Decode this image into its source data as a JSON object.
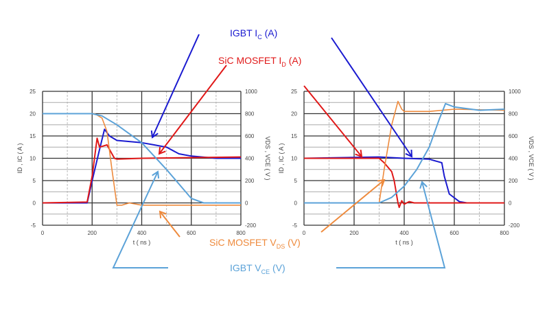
{
  "labels": {
    "igbt_ic": {
      "main": "IGBT I",
      "sub": "C",
      "unit": " (A)",
      "color": "#1a1ad0"
    },
    "sic_id": {
      "main": "SiC MOSFET I",
      "sub": "D",
      "unit": " (A)",
      "color": "#e01818"
    },
    "sic_vds": {
      "main": "SiC MOSFET V",
      "sub": "DS",
      "unit": " (V)",
      "color": "#ee8a3c"
    },
    "igbt_vce": {
      "main": "IGBT V",
      "sub": "CE",
      "unit": " (V)",
      "color": "#5ba2d8"
    }
  },
  "chart_data": [
    {
      "type": "line",
      "xlabel": "t ( ns )",
      "ylabel": "ID , IC ( A )",
      "y2label": "VDS , VCE ( V )",
      "xlim": [
        0,
        800
      ],
      "ylim": [
        -5,
        25
      ],
      "y2lim": [
        -200,
        1000
      ],
      "xticks": [
        0,
        200,
        400,
        600,
        800
      ],
      "yticks": [
        -5,
        0,
        5,
        10,
        15,
        20,
        25
      ],
      "y2ticks": [
        -200,
        0,
        200,
        400,
        600,
        800,
        1000
      ],
      "grid": true,
      "series": [
        {
          "name": "IGBT IC (A)",
          "axis": "left",
          "color": "#1a1ad0",
          "x": [
            0,
            180,
            200,
            230,
            250,
            270,
            300,
            400,
            450,
            500,
            550,
            600,
            700,
            800
          ],
          "y": [
            0,
            0,
            5,
            12,
            16.5,
            15,
            14,
            13.5,
            13,
            12.5,
            11,
            10.5,
            10,
            10
          ]
        },
        {
          "name": "SiC MOSFET ID (A)",
          "axis": "left",
          "color": "#e01818",
          "x": [
            0,
            180,
            200,
            220,
            230,
            260,
            280,
            290,
            300,
            400,
            800
          ],
          "y": [
            0,
            0.2,
            6,
            14.5,
            12.5,
            13,
            11,
            10,
            9.8,
            10,
            10.3
          ]
        },
        {
          "name": "SiC MOSFET VDS (V)",
          "axis": "right",
          "color": "#ee8a3c",
          "x": [
            0,
            210,
            240,
            260,
            280,
            300,
            320,
            350,
            400,
            500,
            800
          ],
          "y": [
            800,
            800,
            760,
            640,
            300,
            -20,
            -20,
            0,
            -20,
            -20,
            -20
          ]
        },
        {
          "name": "IGBT VCE (V)",
          "axis": "right",
          "color": "#5ba2d8",
          "x": [
            0,
            200,
            240,
            300,
            400,
            500,
            600,
            650,
            800
          ],
          "y": [
            800,
            800,
            780,
            700,
            540,
            300,
            40,
            0,
            0
          ]
        }
      ]
    },
    {
      "type": "line",
      "xlabel": "t ( ns )",
      "ylabel": "ID , IC ( A )",
      "y2label": "VDS , VCE ( V )",
      "xlim": [
        0,
        800
      ],
      "ylim": [
        -5,
        25
      ],
      "y2lim": [
        -200,
        1000
      ],
      "xticks": [
        0,
        200,
        400,
        600,
        800
      ],
      "yticks": [
        -5,
        0,
        5,
        10,
        15,
        20,
        25
      ],
      "y2ticks": [
        -200,
        0,
        200,
        400,
        600,
        800,
        1000
      ],
      "grid": true,
      "series": [
        {
          "name": "IGBT IC (A)",
          "axis": "left",
          "color": "#1a1ad0",
          "x": [
            0,
            300,
            400,
            500,
            550,
            560,
            580,
            620,
            650,
            800
          ],
          "y": [
            10,
            10.3,
            10,
            9.8,
            9,
            6,
            2,
            0.3,
            0,
            0
          ]
        },
        {
          "name": "SiC MOSFET ID (A)",
          "axis": "left",
          "color": "#e01818",
          "x": [
            0,
            300,
            320,
            350,
            360,
            375,
            380,
            390,
            400,
            420,
            440,
            800
          ],
          "y": [
            10,
            10,
            9,
            7,
            5,
            0,
            -1,
            0.5,
            -0.3,
            0.3,
            0,
            0
          ]
        },
        {
          "name": "SiC MOSFET VDS (V)",
          "axis": "right",
          "color": "#ee8a3c",
          "x": [
            0,
            300,
            320,
            350,
            375,
            390,
            400,
            500,
            600,
            800
          ],
          "y": [
            0,
            0,
            300,
            700,
            910,
            840,
            820,
            820,
            840,
            830
          ]
        },
        {
          "name": "IGBT VCE (V)",
          "axis": "right",
          "color": "#5ba2d8",
          "x": [
            0,
            300,
            350,
            400,
            450,
            500,
            540,
            565,
            600,
            700,
            800
          ],
          "y": [
            0,
            0,
            50,
            150,
            300,
            500,
            750,
            890,
            860,
            830,
            840
          ]
        }
      ]
    }
  ]
}
